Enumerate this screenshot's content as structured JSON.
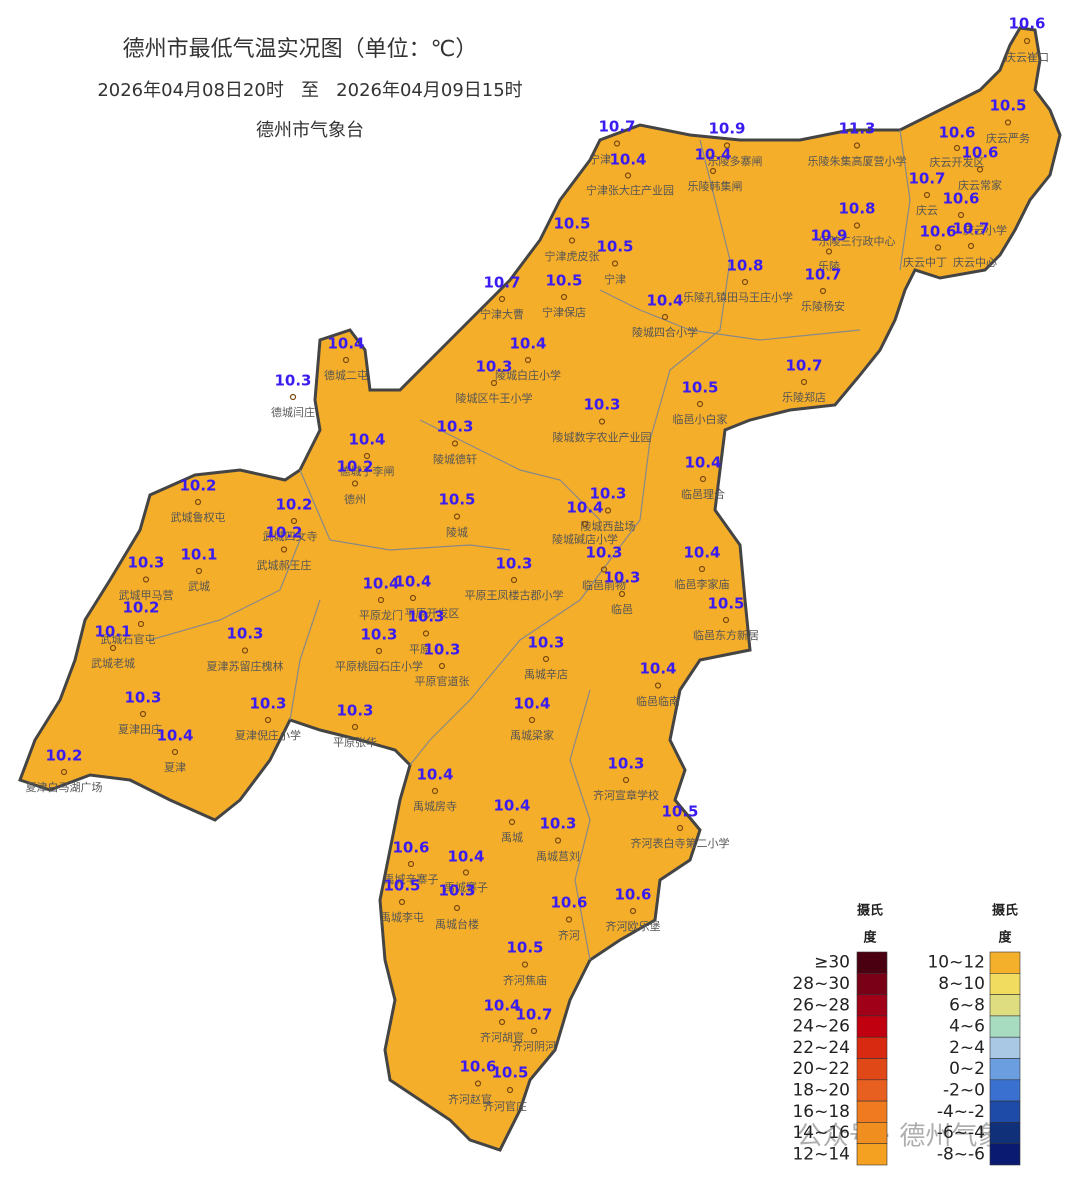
{
  "header": {
    "title": "德州市最低气温实况图（单位：℃）",
    "period": "2026年04月08日20时   至   2026年04月09日15时",
    "publisher": "德州市气象台"
  },
  "stations": [
    {
      "name": "庆云崔口",
      "value": 10.6
    },
    {
      "name": "庆云严务",
      "value": 10.5
    },
    {
      "name": "庆云开发区",
      "value": 10.6
    },
    {
      "name": "庆云常家",
      "value": 10.6
    },
    {
      "name": "庆云",
      "value": 10.7
    },
    {
      "name": "庆云小学",
      "value": 10.6
    },
    {
      "name": "庆云中丁",
      "value": 10.6
    },
    {
      "name": "庆云中心",
      "value": 10.7
    },
    {
      "name": "乐陵朱集高厦营小学",
      "value": 11.3
    },
    {
      "name": "乐陵多寨闸",
      "value": 10.9
    },
    {
      "name": "乐陵韩集闸",
      "value": 10.4
    },
    {
      "name": "宁津",
      "value": 10.7
    },
    {
      "name": "宁津张大庄产业园",
      "value": 10.4
    },
    {
      "name": "乐陵三行政中心",
      "value": 10.8
    },
    {
      "name": "乐陵",
      "value": 10.9
    },
    {
      "name": "乐陵杨安",
      "value": 10.7
    },
    {
      "name": "乐陵孔镇田马王庄小学",
      "value": 10.8
    },
    {
      "name": "宁津虎皮张",
      "value": 10.5
    },
    {
      "name": "宁津",
      "value": 10.5
    },
    {
      "name": "宁津保店",
      "value": 10.5
    },
    {
      "name": "宁津大曹",
      "value": 10.7
    },
    {
      "name": "陵城四合小学",
      "value": 10.4
    },
    {
      "name": "陵城白庄小学",
      "value": 10.4
    },
    {
      "name": "陵城区牛王小学",
      "value": 10.3
    },
    {
      "name": "乐陵郑店",
      "value": 10.7
    },
    {
      "name": "临邑小白家",
      "value": 10.5
    },
    {
      "name": "陵城数字农业产业园",
      "value": 10.3
    },
    {
      "name": "陵城德轩",
      "value": 10.3
    },
    {
      "name": "德城二屯",
      "value": 10.4
    },
    {
      "name": "德城闫庄",
      "value": 10.3
    },
    {
      "name": "德城子李闸",
      "value": 10.4
    },
    {
      "name": "德州",
      "value": 10.2
    },
    {
      "name": "临邑理合",
      "value": 10.4
    },
    {
      "name": "陵城",
      "value": 10.5
    },
    {
      "name": "陵城西盐场",
      "value": 10.3
    },
    {
      "name": "陵城碱店小学",
      "value": 10.4
    },
    {
      "name": "武城鲁权屯",
      "value": 10.2
    },
    {
      "name": "武城四女寺",
      "value": 10.2
    },
    {
      "name": "武城郝王庄",
      "value": 10.2
    },
    {
      "name": "武城",
      "value": 10.1
    },
    {
      "name": "武城甲马营",
      "value": 10.3
    },
    {
      "name": "武城石官屯",
      "value": 10.2
    },
    {
      "name": "武城老城",
      "value": 10.1
    },
    {
      "name": "平原王凤楼古郡小学",
      "value": 10.3
    },
    {
      "name": "临邑前物",
      "value": 10.3
    },
    {
      "name": "临邑",
      "value": 10.3
    },
    {
      "name": "临邑李家庙",
      "value": 10.4
    },
    {
      "name": "临邑东方新居",
      "value": 10.5
    },
    {
      "name": "平原龙门",
      "value": 10.4
    },
    {
      "name": "平原开发区",
      "value": 10.4
    },
    {
      "name": "平原",
      "value": 10.3
    },
    {
      "name": "平原桃园石庄小学",
      "value": 10.3
    },
    {
      "name": "平原官道张",
      "value": 10.3
    },
    {
      "name": "夏津苏留庄槐林",
      "value": 10.3
    },
    {
      "name": "禹城辛店",
      "value": 10.3
    },
    {
      "name": "临邑临南",
      "value": 10.4
    },
    {
      "name": "夏津田庄",
      "value": 10.3
    },
    {
      "name": "夏津",
      "value": 10.4
    },
    {
      "name": "夏津倪庄小学",
      "value": 10.3
    },
    {
      "name": "平原张华",
      "value": 10.3
    },
    {
      "name": "禹城梁家",
      "value": 10.4
    },
    {
      "name": "夏津白马湖广场",
      "value": 10.2
    },
    {
      "name": "齐河宣章学校",
      "value": 10.3
    },
    {
      "name": "禹城房寺",
      "value": 10.4
    },
    {
      "name": "禹城",
      "value": 10.4
    },
    {
      "name": "齐河表白寺第二小学",
      "value": 10.5
    },
    {
      "name": "禹城莒刘",
      "value": 10.3
    },
    {
      "name": "禹城辛寨子",
      "value": 10.6
    },
    {
      "name": "禹城寨子",
      "value": 10.4
    },
    {
      "name": "禹城李屯",
      "value": 10.5
    },
    {
      "name": "禹城台楼",
      "value": 10.3
    },
    {
      "name": "齐河",
      "value": 10.6
    },
    {
      "name": "齐河欧乐堡",
      "value": 10.6
    },
    {
      "name": "齐河焦庙",
      "value": 10.5
    },
    {
      "name": "齐河胡官",
      "value": 10.4
    },
    {
      "name": "齐河阴河",
      "value": 10.7
    },
    {
      "name": "齐河赵官",
      "value": 10.6
    },
    {
      "name": "齐河官庄",
      "value": 10.5
    }
  ],
  "legend": {
    "title_lines": [
      "摄氏",
      "度"
    ],
    "items": [
      {
        "label": "≥30",
        "color": "#4a0010"
      },
      {
        "label": "28~30",
        "color": "#7a0018"
      },
      {
        "label": "26~28",
        "color": "#a00018"
      },
      {
        "label": "24~26",
        "color": "#c00010"
      },
      {
        "label": "22~24",
        "color": "#d82a10"
      },
      {
        "label": "20~22",
        "color": "#e04818"
      },
      {
        "label": "18~20",
        "color": "#e86020"
      },
      {
        "label": "16~18",
        "color": "#f07a20"
      },
      {
        "label": "14~16",
        "color": "#f08e20"
      },
      {
        "label": "12~14",
        "color": "#f4a020"
      },
      {
        "label": "10~12",
        "color": "#f4b02a"
      },
      {
        "label": "8~10",
        "color": "#f2dc60"
      },
      {
        "label": "6~8",
        "color": "#dede80"
      },
      {
        "label": "4~6",
        "color": "#a8dcc0"
      },
      {
        "label": "2~4",
        "color": "#a8c8e4"
      },
      {
        "label": "0~2",
        "color": "#6a9ee0"
      },
      {
        "label": "-2~0",
        "color": "#3a70d0"
      },
      {
        "label": "-4~-2",
        "color": "#1e4aa8"
      },
      {
        "label": "-6~-4",
        "color": "#10307a"
      },
      {
        "label": "-8~-6",
        "color": "#0a1a70"
      }
    ]
  },
  "watermark": "公众号 · 德州气象"
}
